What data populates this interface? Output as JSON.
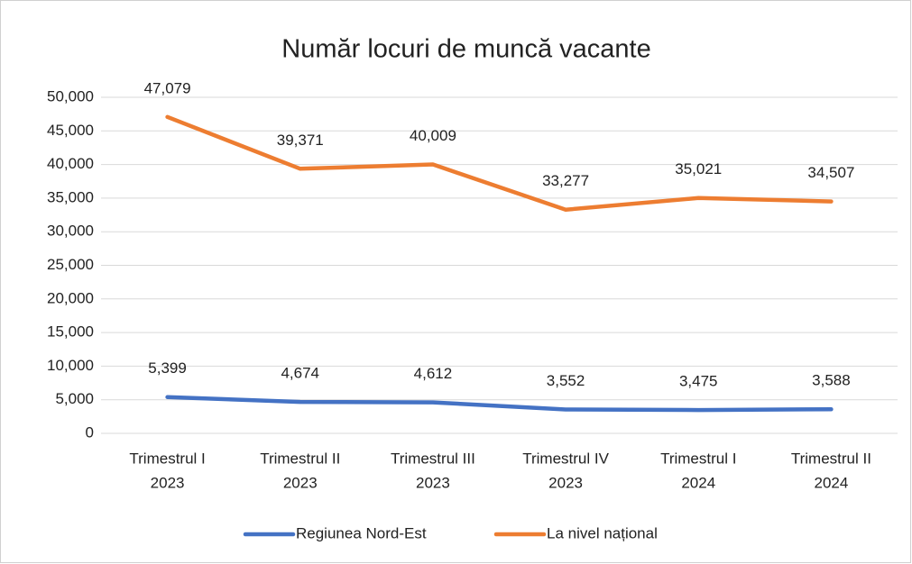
{
  "chart_data": {
    "type": "line",
    "title": "Număr locuri de muncă vacante",
    "categories": [
      [
        "Trimestrul I",
        "2023"
      ],
      [
        "Trimestrul II",
        "2023"
      ],
      [
        "Trimestrul III",
        "2023"
      ],
      [
        "Trimestrul IV",
        "2023"
      ],
      [
        "Trimestrul I",
        "2024"
      ],
      [
        "Trimestrul II",
        "2024"
      ]
    ],
    "series": [
      {
        "name": "Regiunea Nord-Est",
        "color": "#4472c4",
        "values": [
          5399,
          4674,
          4612,
          3552,
          3475,
          3588
        ],
        "value_labels": [
          "5,399",
          "4,674",
          "4,612",
          "3,552",
          "3,475",
          "3,588"
        ]
      },
      {
        "name": "La nivel național",
        "color": "#ed7d31",
        "values": [
          47079,
          39371,
          40009,
          33277,
          35021,
          34507
        ],
        "value_labels": [
          "47,079",
          "39,371",
          "40,009",
          "33,277",
          "35,021",
          "34,507"
        ]
      }
    ],
    "ylim": [
      0,
      50000
    ],
    "yticks": [
      0,
      {
        "value": 5000,
        "label": "5,000"
      },
      {
        "value": 10000,
        "label": "10,000"
      },
      {
        "value": 15000,
        "label": "15,000"
      },
      {
        "value": 20000,
        "label": "20,000"
      },
      {
        "value": 25000,
        "label": "25,000"
      },
      {
        "value": 30000,
        "label": "30,000"
      },
      {
        "value": 35000,
        "label": "35,000"
      },
      {
        "value": 40000,
        "label": "40,000"
      },
      {
        "value": 45000,
        "label": "45,000"
      },
      {
        "value": 50000,
        "label": "50,000"
      }
    ],
    "grid": true,
    "legend": "bottom"
  }
}
